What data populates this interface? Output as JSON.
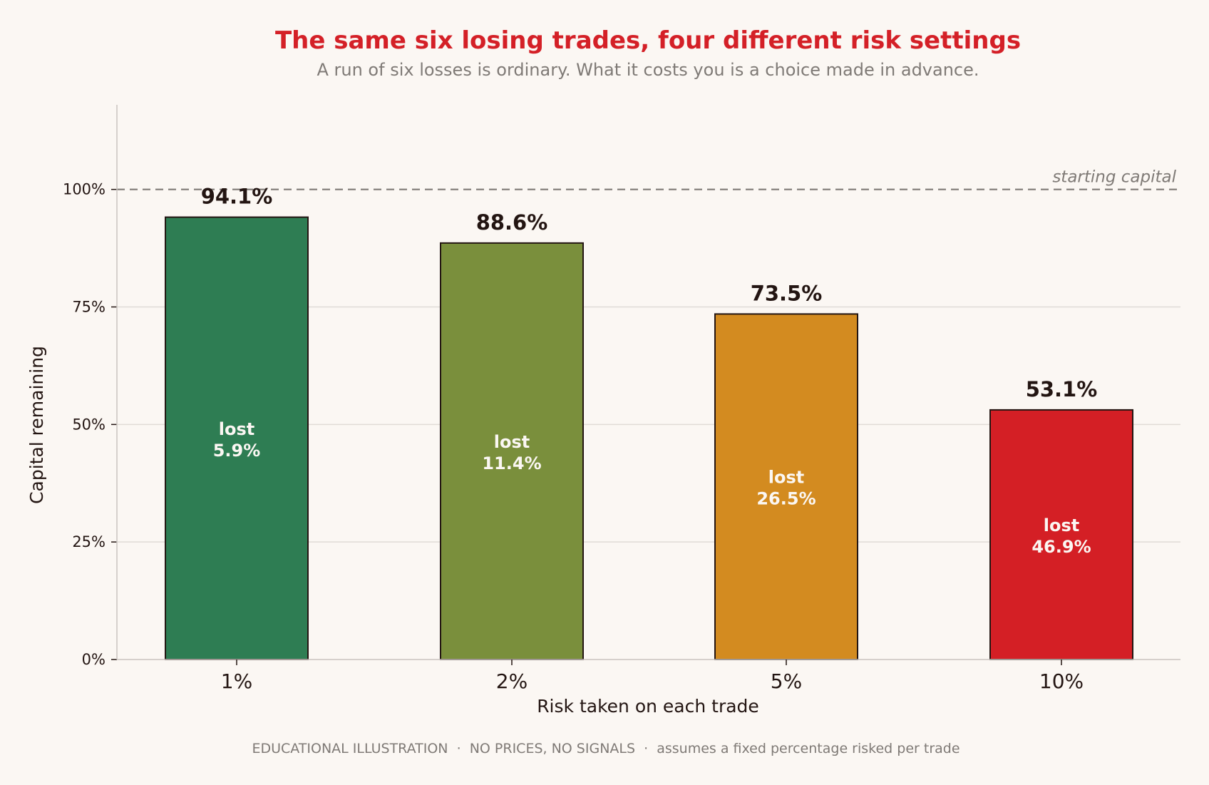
{
  "title": "The same six losing trades, four different risk settings",
  "subtitle": "A run of six losses is ordinary. What it costs you is a choice made in advance.",
  "footer": "EDUCATIONAL ILLUSTRATION  ·  NO PRICES, NO SIGNALS  ·  assumes a fixed percentage risked per trade",
  "colors": {
    "background": "#fbf7f3",
    "title": "#d42027",
    "subtitle": "#7f7a76",
    "text": "#231512",
    "grid": "#e0dbd6",
    "axis": "#c9c4bf",
    "reference": "#7f7a76",
    "inbar_text": "#fbf7f3"
  },
  "chart_data": {
    "type": "bar",
    "categories": [
      "1%",
      "2%",
      "5%",
      "10%"
    ],
    "values": [
      94.1,
      88.6,
      73.5,
      53.1
    ],
    "value_labels": [
      "94.1%",
      "88.6%",
      "73.5%",
      "53.1%"
    ],
    "lost_word": "lost",
    "lost_labels": [
      "5.9%",
      "11.4%",
      "26.5%",
      "46.9%"
    ],
    "bar_colors": [
      "#2e7d53",
      "#7a8f3c",
      "#d38b20",
      "#d41f25"
    ],
    "xlabel": "Risk taken on each trade",
    "ylabel": "Capital remaining",
    "ylim": [
      0,
      118
    ],
    "yticks": [
      0,
      25,
      50,
      75,
      100
    ],
    "ytick_labels": [
      "0%",
      "25%",
      "50%",
      "75%",
      "100%"
    ],
    "reference_line": {
      "value": 100,
      "label": "starting capital",
      "style": "dashed"
    },
    "grid": "horizontal"
  }
}
